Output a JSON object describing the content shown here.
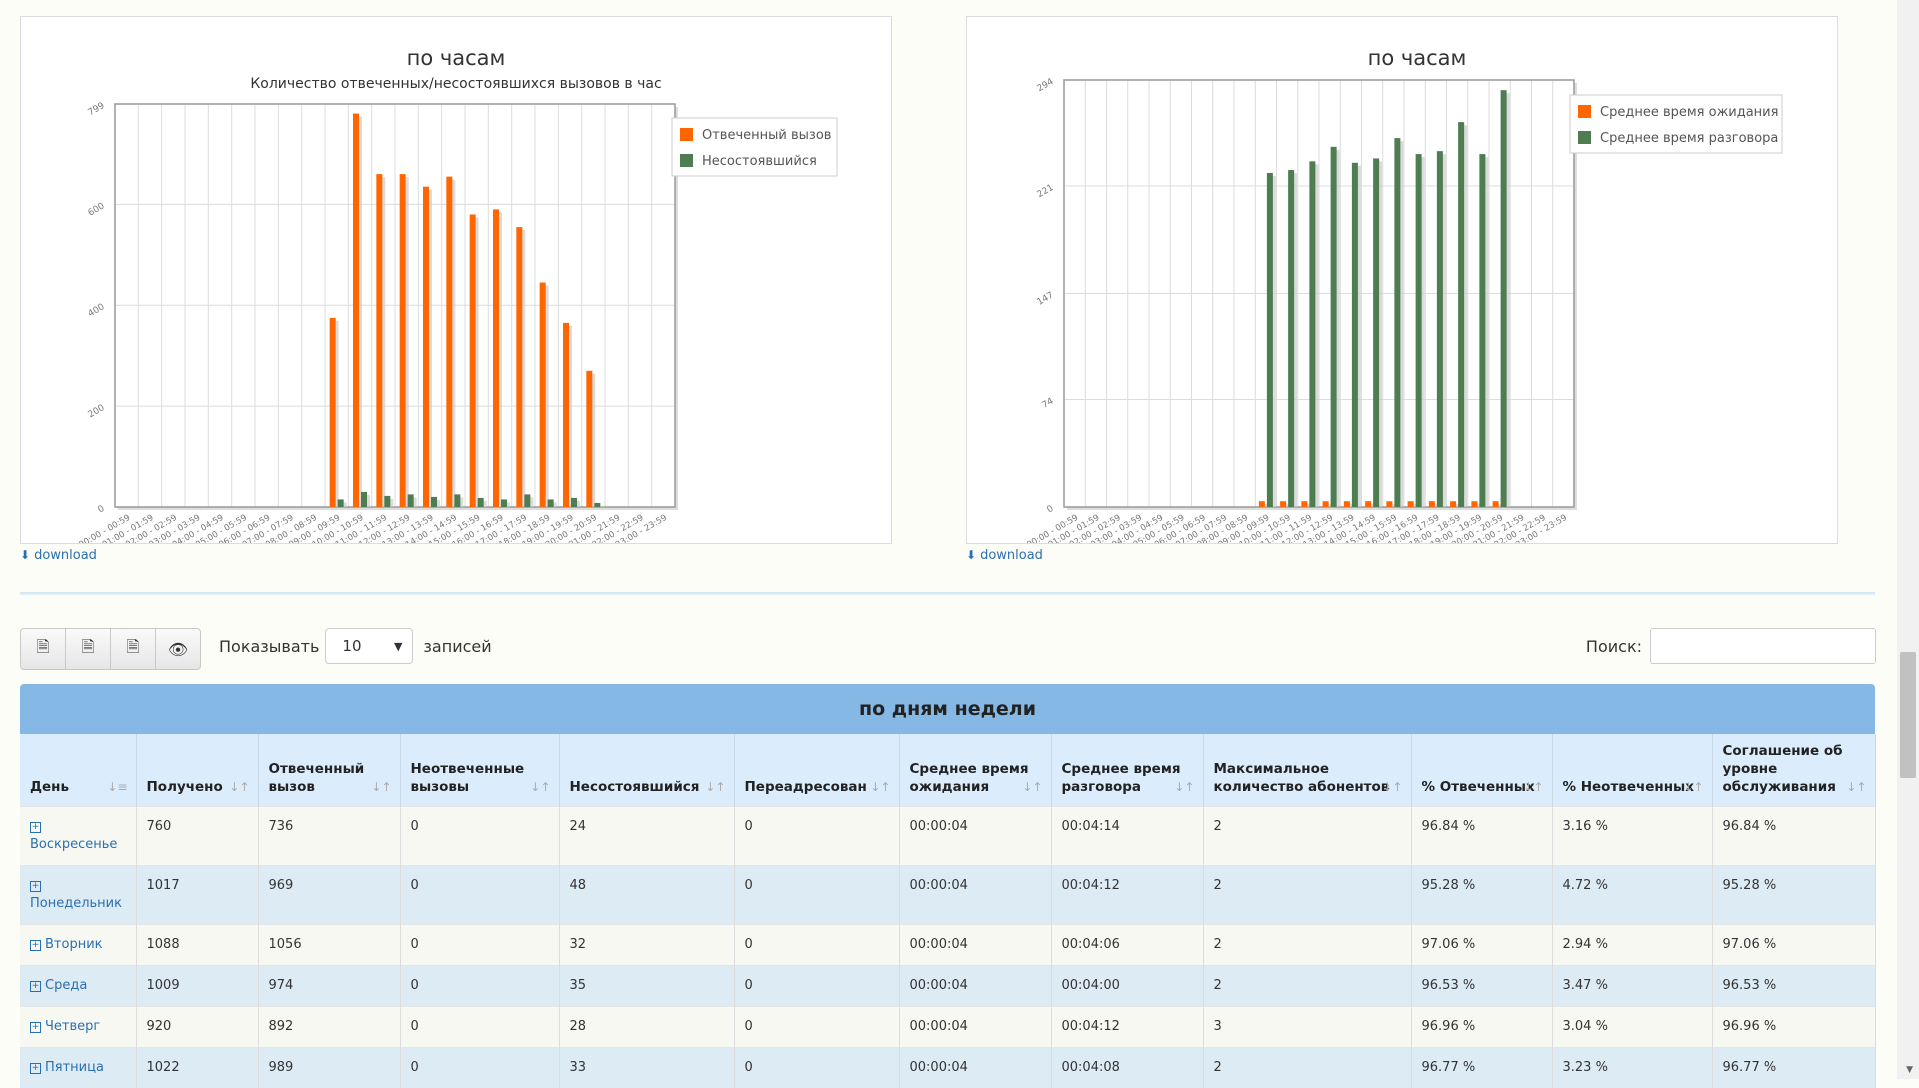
{
  "charts": [
    {
      "title": "по часам",
      "subtitle": "Количество отвеченных/несостоявшихся вызовов в час",
      "download_label": "download"
    },
    {
      "title": "по часам",
      "subtitle": "",
      "download_label": "download"
    }
  ],
  "chart_data": [
    {
      "type": "bar",
      "title": "по часам",
      "subtitle": "Количество отвеченных/несостоявшихся вызовов в час",
      "categories": [
        "00:00 - 00:59",
        "01:00 - 01:59",
        "02:00 - 02:59",
        "03:00 - 03:59",
        "04:00 - 04:59",
        "05:00 - 05:59",
        "06:00 - 06:59",
        "07:00 - 07:59",
        "08:00 - 08:59",
        "09:00 - 09:59",
        "10:00 - 10:59",
        "11:00 - 11:59",
        "12:00 - 12:59",
        "13:00 - 13:59",
        "14:00 - 14:59",
        "15:00 - 15:59",
        "16:00 - 16:59",
        "17:00 - 17:59",
        "18:00 - 18:59",
        "19:00 - 19:59",
        "20:00 - 20:59",
        "21:00 - 21:59",
        "22:00 - 22:59",
        "23:00 - 23:59"
      ],
      "series": [
        {
          "name": "Отвеченный вызов",
          "color": "#ff6600",
          "values": [
            0,
            0,
            0,
            0,
            0,
            0,
            0,
            0,
            0,
            375,
            780,
            660,
            660,
            635,
            655,
            580,
            590,
            555,
            445,
            365,
            270,
            0,
            0,
            0
          ]
        },
        {
          "name": "Несостоявшийся",
          "color": "#4e7d52",
          "values": [
            0,
            0,
            0,
            0,
            0,
            0,
            0,
            0,
            0,
            15,
            30,
            22,
            25,
            20,
            25,
            18,
            15,
            25,
            15,
            18,
            8,
            0,
            0,
            0
          ]
        }
      ],
      "ylim": [
        0,
        799
      ],
      "yticks": [
        "0",
        "200",
        "400",
        "600",
        "799"
      ],
      "grid": true,
      "legend_position": "top-right"
    },
    {
      "type": "bar",
      "title": "по часам",
      "categories": [
        "00:00 - 00:59",
        "01:00 - 01:59",
        "02:00 - 02:59",
        "03:00 - 03:59",
        "04:00 - 04:59",
        "05:00 - 05:59",
        "06:00 - 06:59",
        "07:00 - 07:59",
        "08:00 - 08:59",
        "09:00 - 09:59",
        "10:00 - 10:59",
        "11:00 - 11:59",
        "12:00 - 12:59",
        "13:00 - 13:59",
        "14:00 - 14:59",
        "15:00 - 15:59",
        "16:00 - 16:59",
        "17:00 - 17:59",
        "18:00 - 18:59",
        "19:00 - 19:59",
        "20:00 - 20:59",
        "21:00 - 21:59",
        "22:00 - 22:59",
        "23:00 - 23:59"
      ],
      "series": [
        {
          "name": "Среднее время ожидания",
          "color": "#ff6600",
          "values": [
            0,
            0,
            0,
            0,
            0,
            0,
            0,
            0,
            0,
            4,
            4,
            4,
            4,
            4,
            4,
            4,
            4,
            4,
            4,
            4,
            4,
            0,
            0,
            0
          ]
        },
        {
          "name": "Среднее время разговора",
          "color": "#4e7d52",
          "values": [
            0,
            0,
            0,
            0,
            0,
            0,
            0,
            0,
            0,
            230,
            232,
            238,
            248,
            237,
            240,
            254,
            243,
            245,
            265,
            243,
            287,
            0,
            0,
            0
          ]
        }
      ],
      "ylim": [
        0,
        294
      ],
      "yticks": [
        "0",
        "74",
        "147",
        "221",
        "294"
      ],
      "grid": true,
      "legend_position": "top-right"
    }
  ],
  "toolbar": {
    "buttons": [
      {
        "name": "export-excel-button",
        "icon": "excel-file-icon",
        "glyph": "🗎"
      },
      {
        "name": "export-csv-button",
        "icon": "csv-file-icon",
        "glyph": "🗎"
      },
      {
        "name": "export-pdf-button",
        "icon": "pdf-file-icon",
        "glyph": "🗎"
      },
      {
        "name": "column-visibility-button",
        "icon": "eye-icon",
        "glyph": "👁"
      }
    ]
  },
  "length": {
    "label_before": "Показывать",
    "value": "10",
    "label_after": "записей"
  },
  "search": {
    "label": "Поиск:",
    "value": "",
    "placeholder": ""
  },
  "table": {
    "title": "по дням недели",
    "columns": [
      "День",
      "Получено",
      "Отвеченный вызов",
      "Неотвеченные вызовы",
      "Несостоявшийся",
      "Переадресован",
      "Среднее время ожидания",
      "Среднее время разговора",
      "Максимальное количество абонентов",
      "% Отвеченных",
      "% Неотвеченных",
      "Соглашение об уровне обслуживания"
    ],
    "rows": [
      [
        "Воскресенье",
        "760",
        "736",
        "0",
        "24",
        "0",
        "00:00:04",
        "00:04:14",
        "2",
        "96.84 %",
        "3.16 %",
        "96.84 %"
      ],
      [
        "Понедельник",
        "1017",
        "969",
        "0",
        "48",
        "0",
        "00:00:04",
        "00:04:12",
        "2",
        "95.28 %",
        "4.72 %",
        "95.28 %"
      ],
      [
        "Вторник",
        "1088",
        "1056",
        "0",
        "32",
        "0",
        "00:00:04",
        "00:04:06",
        "2",
        "97.06 %",
        "2.94 %",
        "97.06 %"
      ],
      [
        "Среда",
        "1009",
        "974",
        "0",
        "35",
        "0",
        "00:00:04",
        "00:04:00",
        "2",
        "96.53 %",
        "3.47 %",
        "96.53 %"
      ],
      [
        "Четверг",
        "920",
        "892",
        "0",
        "28",
        "0",
        "00:00:04",
        "00:04:12",
        "3",
        "96.96 %",
        "3.04 %",
        "96.96 %"
      ],
      [
        "Пятница",
        "1022",
        "989",
        "0",
        "33",
        "0",
        "00:00:04",
        "00:04:08",
        "2",
        "96.77 %",
        "3.23 %",
        "96.77 %"
      ]
    ]
  }
}
